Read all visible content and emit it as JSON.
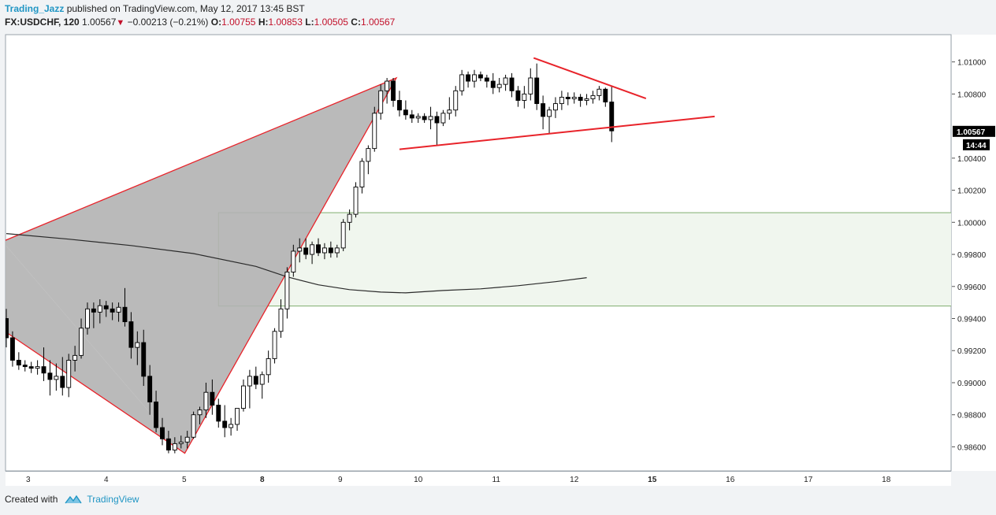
{
  "header": {
    "author": "Trading_Jazz",
    "published_text": "published on TradingView.com, May 12, 2017 13:45 BST",
    "symbol": "FX:USDCHF, 120",
    "last": "1.00567",
    "change": "−0.00213 (−0.21%)",
    "o_label": "O:",
    "o_value": "1.00755",
    "h_label": "H:",
    "h_value": "1.00853",
    "l_label": "L:",
    "l_value": "1.00505",
    "c_label": "C:",
    "c_value": "1.00567"
  },
  "footer": {
    "created_with": "Created with",
    "brand": "TradingView"
  },
  "colors": {
    "background": "#ffffff",
    "page": "#f1f3f5",
    "candle_up": "#ffffff",
    "candle_down": "#000000",
    "trendline": "#e8232a",
    "pattern_fill": "#b3b3b3",
    "zone_fill": "#f0f6ee",
    "zone_border": "#7fae6e",
    "moving_average": "#2a2a2a",
    "axis_text": "#222222",
    "price_tag_bg": "#000000"
  },
  "chart_data": {
    "type": "candlestick",
    "instrument": "FX:USDCHF",
    "interval": "120",
    "x_ticks": [
      {
        "label": "3",
        "bold": false
      },
      {
        "label": "4",
        "bold": false
      },
      {
        "label": "5",
        "bold": false
      },
      {
        "label": "8",
        "bold": true
      },
      {
        "label": "9",
        "bold": false
      },
      {
        "label": "10",
        "bold": false
      },
      {
        "label": "11",
        "bold": false
      },
      {
        "label": "12",
        "bold": false
      },
      {
        "label": "15",
        "bold": true
      },
      {
        "label": "16",
        "bold": false
      },
      {
        "label": "17",
        "bold": false
      },
      {
        "label": "18",
        "bold": false
      }
    ],
    "y_ticks": [
      "1.01000",
      "1.00800",
      "1.00400",
      "1.00200",
      "1.00000",
      "0.99800",
      "0.99600",
      "0.99400",
      "0.99200",
      "0.99000",
      "0.98800",
      "0.98600"
    ],
    "ylim": [
      0.9845,
      1.0117
    ],
    "last_price": 1.00567,
    "last_price_label": "1.00567",
    "countdown_label": "14:44",
    "candles": [
      [
        0.994,
        0.9946,
        0.9922,
        0.9928
      ],
      [
        0.9928,
        0.9932,
        0.991,
        0.9914
      ],
      [
        0.9914,
        0.9919,
        0.9908,
        0.9911
      ],
      [
        0.9911,
        0.9914,
        0.9907,
        0.991
      ],
      [
        0.991,
        0.9913,
        0.9906,
        0.9909
      ],
      [
        0.9909,
        0.9914,
        0.9905,
        0.991
      ],
      [
        0.991,
        0.9922,
        0.9901,
        0.9906
      ],
      [
        0.9906,
        0.9914,
        0.9892,
        0.9902
      ],
      [
        0.9902,
        0.9912,
        0.9895,
        0.9904
      ],
      [
        0.9904,
        0.9916,
        0.9892,
        0.9897
      ],
      [
        0.9897,
        0.9918,
        0.9891,
        0.9914
      ],
      [
        0.9914,
        0.9923,
        0.9907,
        0.9917
      ],
      [
        0.9917,
        0.994,
        0.9915,
        0.9934
      ],
      [
        0.9934,
        0.995,
        0.993,
        0.9946
      ],
      [
        0.9946,
        0.995,
        0.9934,
        0.9944
      ],
      [
        0.9944,
        0.9952,
        0.9937,
        0.9948
      ],
      [
        0.9948,
        0.9951,
        0.9941,
        0.9946
      ],
      [
        0.9946,
        0.995,
        0.9939,
        0.9944
      ],
      [
        0.9944,
        0.995,
        0.9938,
        0.9947
      ],
      [
        0.9947,
        0.9959,
        0.9935,
        0.9938
      ],
      [
        0.9938,
        0.9944,
        0.9915,
        0.9922
      ],
      [
        0.9922,
        0.9932,
        0.9911,
        0.9925
      ],
      [
        0.9925,
        0.9933,
        0.9898,
        0.9904
      ],
      [
        0.9904,
        0.9911,
        0.988,
        0.9888
      ],
      [
        0.9888,
        0.9895,
        0.9869,
        0.9872
      ],
      [
        0.9872,
        0.9878,
        0.9861,
        0.9865
      ],
      [
        0.9865,
        0.987,
        0.9856,
        0.9858
      ],
      [
        0.9858,
        0.9866,
        0.9856,
        0.9862
      ],
      [
        0.9862,
        0.9867,
        0.9859,
        0.9863
      ],
      [
        0.9863,
        0.987,
        0.9859,
        0.9866
      ],
      [
        0.9866,
        0.9882,
        0.9865,
        0.988
      ],
      [
        0.988,
        0.9885,
        0.9874,
        0.9883
      ],
      [
        0.9883,
        0.99,
        0.9878,
        0.9894
      ],
      [
        0.9894,
        0.9902,
        0.988,
        0.9886
      ],
      [
        0.9886,
        0.989,
        0.9872,
        0.9876
      ],
      [
        0.9876,
        0.9886,
        0.9866,
        0.9872
      ],
      [
        0.9872,
        0.9878,
        0.9867,
        0.9874
      ],
      [
        0.9874,
        0.9884,
        0.987,
        0.9884
      ],
      [
        0.9884,
        0.9902,
        0.9882,
        0.9898
      ],
      [
        0.9898,
        0.9908,
        0.9884,
        0.9904
      ],
      [
        0.9904,
        0.991,
        0.9896,
        0.9899
      ],
      [
        0.9899,
        0.9907,
        0.989,
        0.9905
      ],
      [
        0.9905,
        0.992,
        0.99,
        0.9915
      ],
      [
        0.9915,
        0.9934,
        0.9912,
        0.9932
      ],
      [
        0.9932,
        0.9952,
        0.9928,
        0.9946
      ],
      [
        0.9946,
        0.9972,
        0.994,
        0.9969
      ],
      [
        0.9969,
        0.9986,
        0.9966,
        0.9982
      ],
      [
        0.9982,
        0.999,
        0.9975,
        0.9984
      ],
      [
        0.9984,
        0.999,
        0.9977,
        0.998
      ],
      [
        0.998,
        0.9988,
        0.9974,
        0.9986
      ],
      [
        0.9986,
        0.999,
        0.9979,
        0.9981
      ],
      [
        0.9981,
        0.9987,
        0.9977,
        0.9984
      ],
      [
        0.9984,
        0.9988,
        0.9978,
        0.9981
      ],
      [
        0.9981,
        0.9986,
        0.9978,
        0.9984
      ],
      [
        0.9984,
        1.0002,
        0.9982,
        1.0
      ],
      [
        1.0,
        1.0008,
        0.9995,
        1.0005
      ],
      [
        1.0005,
        1.0025,
        1.0003,
        1.0022
      ],
      [
        1.0022,
        1.004,
        1.0018,
        1.0038
      ],
      [
        1.0038,
        1.0048,
        1.003,
        1.0046
      ],
      [
        1.0046,
        1.0072,
        1.0044,
        1.0068
      ],
      [
        1.0068,
        1.0086,
        1.0064,
        1.0082
      ],
      [
        1.0082,
        1.009,
        1.0074,
        1.0088
      ],
      [
        1.0088,
        1.009,
        1.0072,
        1.0076
      ],
      [
        1.0076,
        1.0082,
        1.0066,
        1.007
      ],
      [
        1.007,
        1.0076,
        1.0064,
        1.0067
      ],
      [
        1.0067,
        1.007,
        1.0062,
        1.0065
      ],
      [
        1.0065,
        1.0068,
        1.0062,
        1.0066
      ],
      [
        1.0066,
        1.0068,
        1.0062,
        1.0064
      ],
      [
        1.0064,
        1.0072,
        1.0058,
        1.0066
      ],
      [
        1.0066,
        1.0069,
        1.0048,
        1.0062
      ],
      [
        1.0062,
        1.007,
        1.006,
        1.0068
      ],
      [
        1.0068,
        1.0078,
        1.0064,
        1.007
      ],
      [
        1.007,
        1.0085,
        1.0066,
        1.0082
      ],
      [
        1.0082,
        1.0095,
        1.0079,
        1.0092
      ],
      [
        1.0092,
        1.0094,
        1.0084,
        1.0088
      ],
      [
        1.0088,
        1.0095,
        1.0084,
        1.0092
      ],
      [
        1.0092,
        1.0094,
        1.0088,
        1.009
      ],
      [
        1.009,
        1.0092,
        1.0084,
        1.0088
      ],
      [
        1.0088,
        1.0093,
        1.008,
        1.0084
      ],
      [
        1.0084,
        1.009,
        1.0081,
        1.0086
      ],
      [
        1.0086,
        1.0092,
        1.0082,
        1.009
      ],
      [
        1.009,
        1.0093,
        1.0078,
        1.0082
      ],
      [
        1.0082,
        1.0085,
        1.0072,
        1.0076
      ],
      [
        1.0076,
        1.0085,
        1.0071,
        1.008
      ],
      [
        1.008,
        1.0096,
        1.0076,
        1.009
      ],
      [
        1.009,
        1.0099,
        1.007,
        1.0074
      ],
      [
        1.0074,
        1.0079,
        1.0058,
        1.0066
      ],
      [
        1.0066,
        1.0072,
        1.0055,
        1.007
      ],
      [
        1.007,
        1.0078,
        1.0065,
        1.0074
      ],
      [
        1.0074,
        1.0082,
        1.007,
        1.0078
      ],
      [
        1.0078,
        1.0081,
        1.0073,
        1.0077
      ],
      [
        1.0077,
        1.0081,
        1.0074,
        1.0078
      ],
      [
        1.0078,
        1.008,
        1.0072,
        1.0076
      ],
      [
        1.0076,
        1.008,
        1.0073,
        1.0077
      ],
      [
        1.0077,
        1.0082,
        1.0074,
        1.0079
      ],
      [
        1.0079,
        1.0085,
        1.0076,
        1.0083
      ],
      [
        1.0083,
        1.0084,
        1.0072,
        1.0075
      ],
      [
        1.0075,
        1.0085,
        1.005,
        1.0057
      ]
    ],
    "moving_average": [
      [
        0,
        0.9993
      ],
      [
        10,
        0.99895
      ],
      [
        20,
        0.99855
      ],
      [
        30,
        0.99805
      ],
      [
        40,
        0.99725
      ],
      [
        45,
        0.9966
      ],
      [
        50,
        0.9961
      ],
      [
        55,
        0.9958
      ],
      [
        60,
        0.99565
      ],
      [
        64,
        0.9956
      ],
      [
        70,
        0.99575
      ],
      [
        76,
        0.99585
      ],
      [
        82,
        0.99605
      ],
      [
        88,
        0.9963
      ],
      [
        93,
        0.99655
      ]
    ],
    "pattern": {
      "points": [
        [
          -0.6,
          0.9988
        ],
        [
          28.6,
          0.9856
        ],
        [
          62.5,
          1.009
        ]
      ],
      "lower_leg_start": [
        -0.6,
        0.9933
      ]
    },
    "upper_trendline": [
      [
        84.5,
        1.01025
      ],
      [
        102.5,
        1.00772
      ]
    ],
    "lower_trendline": [
      [
        63.0,
        1.00455
      ],
      [
        113.5,
        1.0066
      ]
    ],
    "demand_zone": {
      "x_start": 34.0,
      "x_end": 155.0,
      "top": 1.0006,
      "bottom": 0.99478
    },
    "x_tick_positions": [
      3.5,
      16.0,
      28.5,
      41.0,
      53.5,
      66.0,
      78.5,
      91.0,
      103.5,
      116.0,
      128.5,
      141.0
    ]
  }
}
